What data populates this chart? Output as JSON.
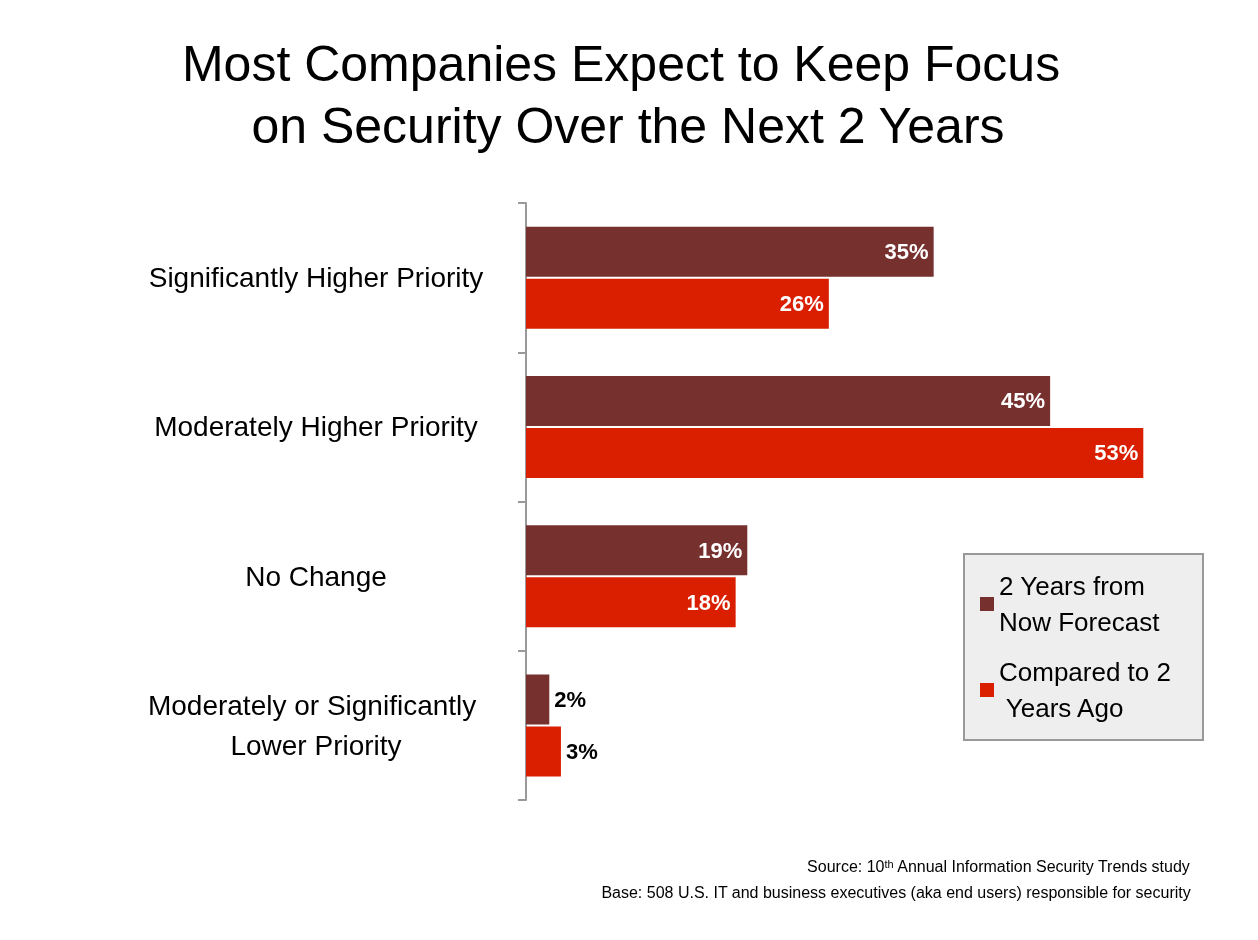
{
  "chart_data": {
    "type": "bar",
    "orientation": "horizontal",
    "title": "Most Companies Expect to Keep Focus on Security Over the Next 2 Years",
    "categories": [
      "Significantly Higher Priority",
      "Moderately Higher Priority",
      "No Change",
      "Moderately or Significantly Lower Priority"
    ],
    "series": [
      {
        "name": "2 Years from Now Forecast",
        "color": "#76302e",
        "values": [
          35,
          45,
          19,
          2
        ],
        "value_labels": [
          "35%",
          "45%",
          "19%",
          "2%"
        ]
      },
      {
        "name": "Compared to 2 Years Ago",
        "color": "#d91f00",
        "values": [
          26,
          53,
          18,
          3
        ],
        "value_labels": [
          "26%",
          "53%",
          "18%",
          "3%"
        ]
      }
    ],
    "legend": "bottom right",
    "annotations": [
      "Source: 10$^{th}$ Annual Information Security Trends study",
      "Base: 508 U.S. IT and business executives (aka end users) responsible for security"
    ]
  }
}
